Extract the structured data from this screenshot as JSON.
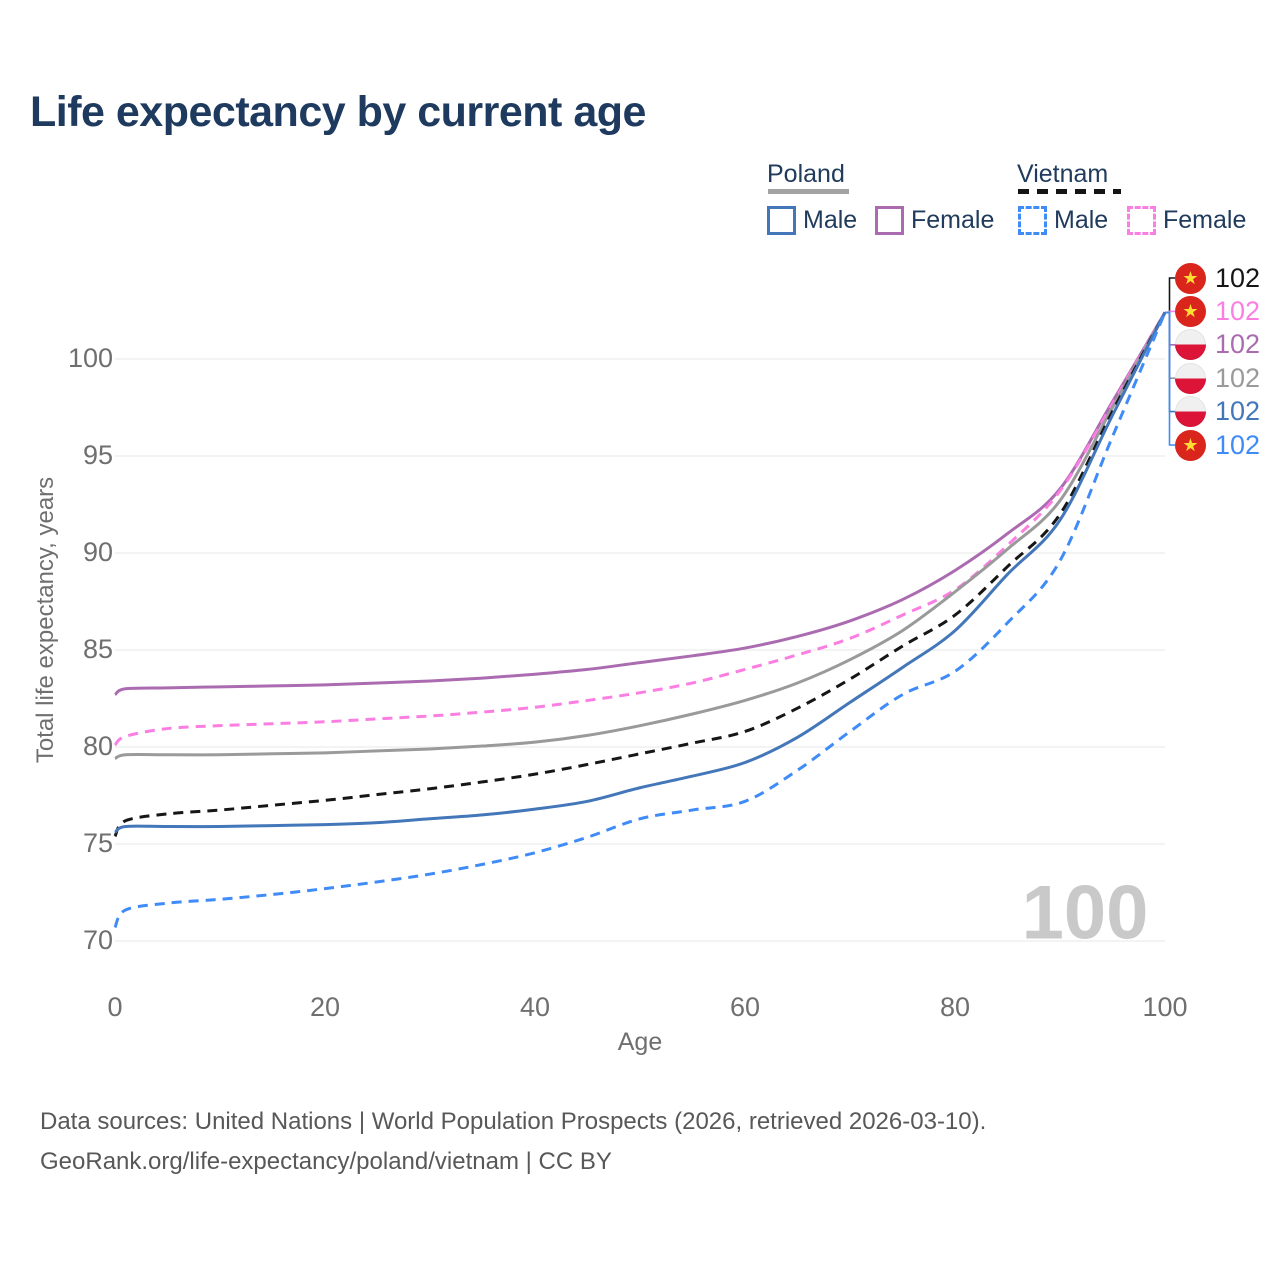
{
  "title": "Life expectancy by current age",
  "colors": {
    "title_text": "#1e3a5e",
    "axis_text": "#6f6f6f",
    "grid": "#ececec",
    "watermark": "#c9c9c9",
    "footer_text": "#585858",
    "poland_flag_red": "#dc1438",
    "poland_flag_white": "#f0f0f0",
    "vietnam_flag_red": "#da251d",
    "vietnam_star_yellow": "#ffde33"
  },
  "legend": {
    "groups": [
      {
        "label": "Poland",
        "underline_style": "solid",
        "underline_color": "#a3a3a3",
        "items": [
          {
            "label": "Male",
            "color": "#4377b9",
            "dashed": false
          },
          {
            "label": "Female",
            "color": "#ab6bb0",
            "dashed": false
          }
        ]
      },
      {
        "label": "Vietnam",
        "underline_style": "dashed",
        "underline_color": "#141414",
        "items": [
          {
            "label": "Male",
            "color": "#3f8bf7",
            "dashed": true
          },
          {
            "label": "Female",
            "color": "#fb7ee2",
            "dashed": true
          }
        ]
      }
    ]
  },
  "chart_data": {
    "type": "line",
    "title": "Life expectancy by current age",
    "xlabel": "Age",
    "ylabel": "Total life expectancy, years",
    "xlim": [
      0,
      100
    ],
    "ylim": [
      68.5,
      103.5
    ],
    "xticks": [
      0,
      20,
      40,
      60,
      80,
      100
    ],
    "yticks": [
      100,
      95,
      90,
      85,
      80,
      75,
      70
    ],
    "grid": "horizontal",
    "legend_position": "top-right",
    "watermark_current_age": "100",
    "x": [
      0,
      1,
      5,
      10,
      15,
      20,
      25,
      30,
      35,
      40,
      45,
      50,
      55,
      60,
      65,
      70,
      75,
      80,
      85,
      90,
      95,
      100
    ],
    "series": [
      {
        "id": "poland-female",
        "name": "Poland Female",
        "country": "Poland",
        "sex": "Female",
        "color": "#ab6bb0",
        "dash": "solid",
        "values": [
          82.7,
          83.0,
          83.05,
          83.1,
          83.15,
          83.2,
          83.3,
          83.4,
          83.55,
          83.75,
          84.0,
          84.35,
          84.7,
          85.1,
          85.7,
          86.5,
          87.6,
          89.1,
          91.0,
          93.3,
          97.8,
          102.4
        ]
      },
      {
        "id": "vietnam-female",
        "name": "Vietnam Female",
        "country": "Vietnam",
        "sex": "Female",
        "color": "#fb7ee2",
        "dash": "dashed",
        "values": [
          80.1,
          80.55,
          80.95,
          81.1,
          81.2,
          81.3,
          81.45,
          81.6,
          81.8,
          82.05,
          82.4,
          82.8,
          83.3,
          84.0,
          84.75,
          85.6,
          86.8,
          88.1,
          90.4,
          93.2,
          97.7,
          102.4
        ]
      },
      {
        "id": "poland-both",
        "name": "Poland (both sexes)",
        "country": "Poland",
        "sex": "Both",
        "color": "#9a9a9a",
        "dash": "solid",
        "values": [
          79.4,
          79.6,
          79.6,
          79.6,
          79.65,
          79.7,
          79.8,
          79.9,
          80.05,
          80.25,
          80.6,
          81.1,
          81.7,
          82.4,
          83.3,
          84.5,
          86.0,
          88.0,
          90.2,
          92.7,
          97.5,
          102.4
        ]
      },
      {
        "id": "vietnam-both",
        "name": "Vietnam (both sexes)",
        "country": "Vietnam",
        "sex": "Both",
        "color": "#161616",
        "dash": "dashed",
        "values": [
          75.4,
          76.2,
          76.55,
          76.75,
          77.0,
          77.25,
          77.55,
          77.85,
          78.2,
          78.6,
          79.1,
          79.65,
          80.2,
          80.8,
          82.0,
          83.5,
          85.2,
          86.8,
          89.3,
          92.0,
          97.3,
          102.4
        ]
      },
      {
        "id": "poland-male",
        "name": "Poland Male",
        "country": "Poland",
        "sex": "Male",
        "color": "#4377b9",
        "dash": "solid",
        "values": [
          75.6,
          75.9,
          75.9,
          75.9,
          75.95,
          76.0,
          76.1,
          76.3,
          76.5,
          76.8,
          77.2,
          77.9,
          78.5,
          79.2,
          80.5,
          82.3,
          84.1,
          86.0,
          88.9,
          91.7,
          97.1,
          102.4
        ]
      },
      {
        "id": "vietnam-male",
        "name": "Vietnam Male",
        "country": "Vietnam",
        "sex": "Male",
        "color": "#3f8bf7",
        "dash": "dashed",
        "values": [
          70.7,
          71.6,
          71.95,
          72.15,
          72.4,
          72.7,
          73.05,
          73.45,
          73.95,
          74.55,
          75.35,
          76.3,
          76.75,
          77.2,
          78.8,
          80.8,
          82.7,
          83.9,
          86.4,
          89.6,
          96.0,
          102.4
        ]
      }
    ],
    "end_labels": [
      {
        "series": "vietnam-both",
        "flag": "vietnam",
        "value": "102"
      },
      {
        "series": "vietnam-female",
        "flag": "vietnam",
        "value": "102"
      },
      {
        "series": "poland-female",
        "flag": "poland",
        "value": "102"
      },
      {
        "series": "poland-both",
        "flag": "poland",
        "value": "102"
      },
      {
        "series": "poland-male",
        "flag": "poland",
        "value": "102"
      },
      {
        "series": "vietnam-male",
        "flag": "vietnam",
        "value": "102"
      }
    ]
  },
  "footer": {
    "line1": "Data sources: United Nations | World Population Prospects (2026, retrieved 2026-03-10).",
    "line2": "GeoRank.org/life-expectancy/poland/vietnam | CC BY"
  }
}
